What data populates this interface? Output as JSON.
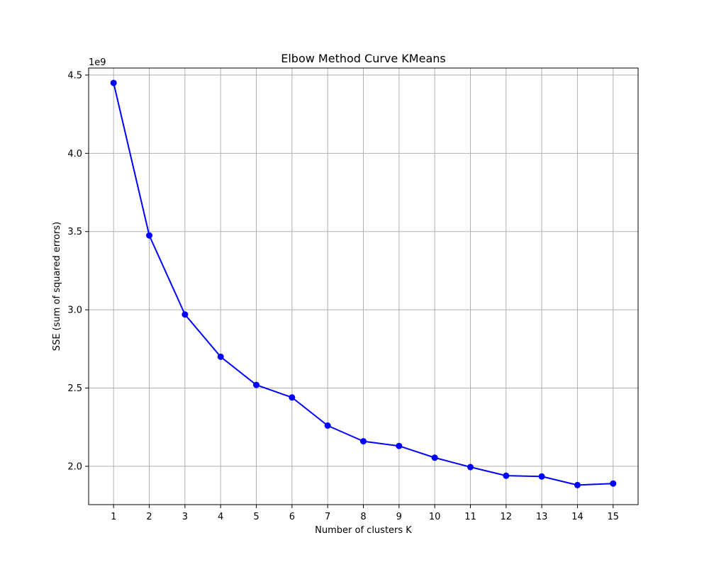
{
  "chart_data": {
    "type": "line",
    "title": "Elbow Method Curve KMeans",
    "xlabel": "Number of clusters K",
    "ylabel": "SSE (sum of squared errors)",
    "y_offset_label": "1e9",
    "y_scale_factor": 1000000000,
    "x": [
      1,
      2,
      3,
      4,
      5,
      6,
      7,
      8,
      9,
      10,
      11,
      12,
      13,
      14,
      15
    ],
    "x_ticks": [
      "1",
      "2",
      "3",
      "4",
      "5",
      "6",
      "7",
      "8",
      "9",
      "10",
      "11",
      "12",
      "13",
      "14",
      "15"
    ],
    "y_ticks": [
      "2.0",
      "2.5",
      "3.0",
      "3.5",
      "4.0",
      "4.5"
    ],
    "y_tick_values": [
      2.0,
      2.5,
      3.0,
      3.5,
      4.0,
      4.5
    ],
    "series": [
      {
        "values": [
          4.45,
          3.475,
          2.97,
          2.7,
          2.52,
          2.44,
          2.26,
          2.16,
          2.13,
          2.055,
          1.995,
          1.94,
          1.935,
          1.88,
          1.89
        ],
        "color": "#0000ff",
        "marker": "circle"
      }
    ],
    "xlim": [
      0.3,
      15.7
    ],
    "ylim": [
      1.755,
      4.545
    ],
    "grid": true,
    "grid_color": "#b0b0b0"
  }
}
